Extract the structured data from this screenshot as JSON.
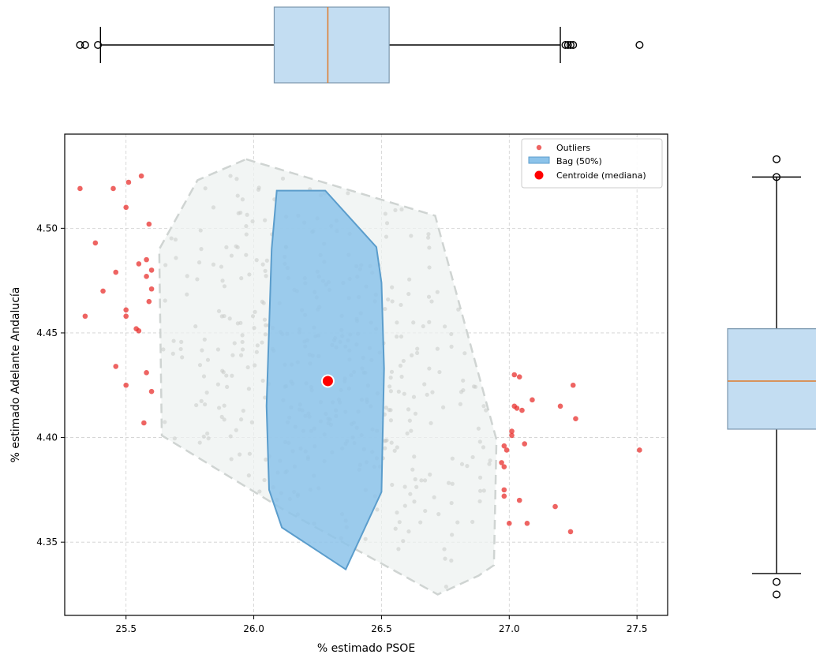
{
  "chart_data": [
    {
      "type": "scatter",
      "title": "",
      "xlabel": "% estimado PSOE",
      "ylabel": "% estimado Adelante Andalucía",
      "xlim": [
        25.26,
        27.62
      ],
      "ylim": [
        4.315,
        4.545
      ],
      "x_ticks": [
        25.5,
        26.0,
        26.5,
        27.0,
        27.5
      ],
      "x_tick_labels": [
        "25.5",
        "26.0",
        "26.5",
        "27.0",
        "27.5"
      ],
      "y_ticks": [
        4.35,
        4.4,
        4.45,
        4.5
      ],
      "y_tick_labels": [
        "4.35",
        "4.40",
        "4.45",
        "4.50"
      ],
      "grid": true,
      "legend": {
        "position": "top-right",
        "entries": [
          "Outliers",
          "Bag (50%)",
          "Centroide (mediana)"
        ]
      },
      "fence_hull": [
        [
          25.97,
          4.533
        ],
        [
          26.71,
          4.506
        ],
        [
          26.95,
          4.399
        ],
        [
          26.94,
          4.339
        ],
        [
          26.88,
          4.334
        ],
        [
          26.72,
          4.325
        ],
        [
          26.11,
          4.366
        ],
        [
          25.64,
          4.401
        ],
        [
          25.63,
          4.49
        ],
        [
          25.78,
          4.523
        ]
      ],
      "bag_hull": [
        [
          26.09,
          4.518
        ],
        [
          26.28,
          4.518
        ],
        [
          26.48,
          4.491
        ],
        [
          26.5,
          4.474
        ],
        [
          26.51,
          4.433
        ],
        [
          26.5,
          4.374
        ],
        [
          26.36,
          4.337
        ],
        [
          26.11,
          4.357
        ],
        [
          26.06,
          4.375
        ],
        [
          26.05,
          4.415
        ],
        [
          26.07,
          4.49
        ]
      ],
      "centroid": {
        "x": 26.29,
        "y": 4.427
      },
      "outliers": [
        [
          25.32,
          4.519
        ],
        [
          25.45,
          4.519
        ],
        [
          25.51,
          4.522
        ],
        [
          25.56,
          4.525
        ],
        [
          25.5,
          4.51
        ],
        [
          25.59,
          4.502
        ],
        [
          25.38,
          4.493
        ],
        [
          25.55,
          4.483
        ],
        [
          25.58,
          4.485
        ],
        [
          25.6,
          4.48
        ],
        [
          25.46,
          4.479
        ],
        [
          25.58,
          4.477
        ],
        [
          25.6,
          4.471
        ],
        [
          25.41,
          4.47
        ],
        [
          25.59,
          4.465
        ],
        [
          25.5,
          4.461
        ],
        [
          25.34,
          4.458
        ],
        [
          25.5,
          4.458
        ],
        [
          25.54,
          4.452
        ],
        [
          25.55,
          4.451
        ],
        [
          25.46,
          4.434
        ],
        [
          25.58,
          4.431
        ],
        [
          25.5,
          4.425
        ],
        [
          25.6,
          4.422
        ],
        [
          25.57,
          4.407
        ],
        [
          27.02,
          4.43
        ],
        [
          27.04,
          4.429
        ],
        [
          27.09,
          4.418
        ],
        [
          27.02,
          4.415
        ],
        [
          27.03,
          4.414
        ],
        [
          27.05,
          4.413
        ],
        [
          27.25,
          4.425
        ],
        [
          27.2,
          4.415
        ],
        [
          27.26,
          4.409
        ],
        [
          27.01,
          4.403
        ],
        [
          27.01,
          4.401
        ],
        [
          27.06,
          4.397
        ],
        [
          26.98,
          4.396
        ],
        [
          26.99,
          4.394
        ],
        [
          27.51,
          4.394
        ],
        [
          26.97,
          4.388
        ],
        [
          26.98,
          4.386
        ],
        [
          26.98,
          4.375
        ],
        [
          26.98,
          4.372
        ],
        [
          27.04,
          4.37
        ],
        [
          27.18,
          4.367
        ],
        [
          27.07,
          4.359
        ],
        [
          27.0,
          4.359
        ],
        [
          27.24,
          4.355
        ]
      ],
      "inlier_count": 450
    },
    {
      "type": "boxplot",
      "orientation": "horizontal",
      "variable": "% estimado PSOE",
      "median": 26.29,
      "q1": 26.08,
      "q3": 26.53,
      "whisker_low": 25.4,
      "whisker_high": 27.2,
      "fliers": [
        25.32,
        25.34,
        25.39,
        27.22,
        27.23,
        27.24,
        27.25,
        27.51
      ]
    },
    {
      "type": "boxplot",
      "orientation": "vertical",
      "variable": "% estimado Adelante Andalucía",
      "median": 4.427,
      "q1": 4.404,
      "q3": 4.452,
      "whisker_low": 4.335,
      "whisker_high": 4.5245,
      "fliers": [
        4.533,
        4.5245,
        4.331,
        4.325
      ]
    }
  ],
  "colors": {
    "outlier": "#e8302e",
    "bag_fill": "#8cc3ea",
    "bag_edge": "#5b9dcc",
    "fence_fill": "#eef2f0",
    "fence_edge": "#cfd4d2",
    "inlier": "#c8cac9",
    "centroid": "#ff0000",
    "box_fill": "#c3ddf2",
    "box_edge": "#7a96ad",
    "median_line": "#e07b2a"
  }
}
